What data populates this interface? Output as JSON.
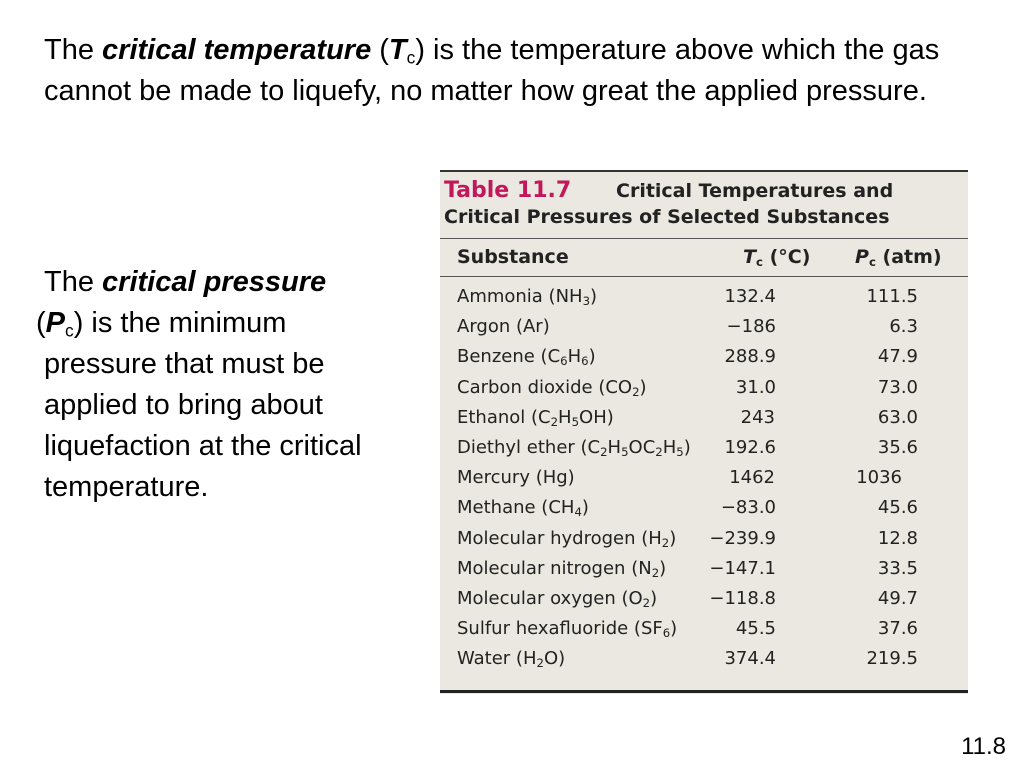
{
  "paragraph1": {
    "pre": "The ",
    "term": "critical temperature",
    "paren_open": " (",
    "symbol": "T",
    "symbol_sub": "c",
    "rest": ") is the temperature above which the gas cannot be made to liquefy, no matter how great the applied pressure."
  },
  "paragraph2": {
    "pre": "The ",
    "term": "critical pressure",
    "paren_open": " (",
    "symbol": "P",
    "symbol_sub": "c",
    "rest": ") is the minimum pressure that must be applied to bring about liquefaction at the critical temperature."
  },
  "table": {
    "label": "Table 11.7",
    "title_line1": "Critical Temperatures and",
    "title_line2": "Critical Pressures of Selected Substances",
    "col_substance": "Substance",
    "col_tc_symbol": "T",
    "col_tc_sub": "c",
    "col_tc_unit": " (°C)",
    "col_pc_symbol": "P",
    "col_pc_sub": "c",
    "col_pc_unit": " (atm)",
    "rows": [
      {
        "name": [
          [
            "Ammonia (NH",
            ""
          ],
          [
            "3",
            "sub"
          ],
          [
            ")",
            ""
          ]
        ],
        "tc": "132.4",
        "pc": "111.5"
      },
      {
        "name": [
          [
            "Argon (Ar)",
            ""
          ]
        ],
        "tc": "−186",
        "pc": "6.3"
      },
      {
        "name": [
          [
            "Benzene (C",
            ""
          ],
          [
            "6",
            "sub"
          ],
          [
            "H",
            ""
          ],
          [
            "6",
            "sub"
          ],
          [
            ")",
            ""
          ]
        ],
        "tc": "288.9",
        "pc": "47.9"
      },
      {
        "name": [
          [
            "Carbon dioxide (CO",
            ""
          ],
          [
            "2",
            "sub"
          ],
          [
            ")",
            ""
          ]
        ],
        "tc": "31.0",
        "pc": "73.0"
      },
      {
        "name": [
          [
            "Ethanol (C",
            ""
          ],
          [
            "2",
            "sub"
          ],
          [
            "H",
            ""
          ],
          [
            "5",
            "sub"
          ],
          [
            "OH)",
            ""
          ]
        ],
        "tc": "243",
        "pc": "63.0"
      },
      {
        "name": [
          [
            "Diethyl ether (C",
            ""
          ],
          [
            "2",
            "sub"
          ],
          [
            "H",
            ""
          ],
          [
            "5",
            "sub"
          ],
          [
            "OC",
            ""
          ],
          [
            "2",
            "sub"
          ],
          [
            "H",
            ""
          ],
          [
            "5",
            "sub"
          ],
          [
            ")",
            ""
          ]
        ],
        "tc": "192.6",
        "pc": "35.6"
      },
      {
        "name": [
          [
            "Mercury (Hg)",
            ""
          ]
        ],
        "tc": "1462",
        "pc": "1036"
      },
      {
        "name": [
          [
            "Methane (CH",
            ""
          ],
          [
            "4",
            "sub"
          ],
          [
            ")",
            ""
          ]
        ],
        "tc": "−83.0",
        "pc": "45.6"
      },
      {
        "name": [
          [
            "Molecular hydrogen (H",
            ""
          ],
          [
            "2",
            "sub"
          ],
          [
            ")",
            ""
          ]
        ],
        "tc": "−239.9",
        "pc": "12.8"
      },
      {
        "name": [
          [
            "Molecular nitrogen (N",
            ""
          ],
          [
            "2",
            "sub"
          ],
          [
            ")",
            ""
          ]
        ],
        "tc": "−147.1",
        "pc": "33.5"
      },
      {
        "name": [
          [
            "Molecular oxygen (O",
            ""
          ],
          [
            "2",
            "sub"
          ],
          [
            ")",
            ""
          ]
        ],
        "tc": "−118.8",
        "pc": "49.7"
      },
      {
        "name": [
          [
            "Sulfur hexafluoride (SF",
            ""
          ],
          [
            "6",
            "sub"
          ],
          [
            ")",
            ""
          ]
        ],
        "tc": "45.5",
        "pc": "37.6"
      },
      {
        "name": [
          [
            "Water (H",
            ""
          ],
          [
            "2",
            "sub"
          ],
          [
            "O)",
            ""
          ]
        ],
        "tc": "374.4",
        "pc": "219.5"
      }
    ]
  },
  "page_number": "11.8",
  "colors": {
    "table_background": "#ebe8e1",
    "table_label": "#c2185b"
  }
}
